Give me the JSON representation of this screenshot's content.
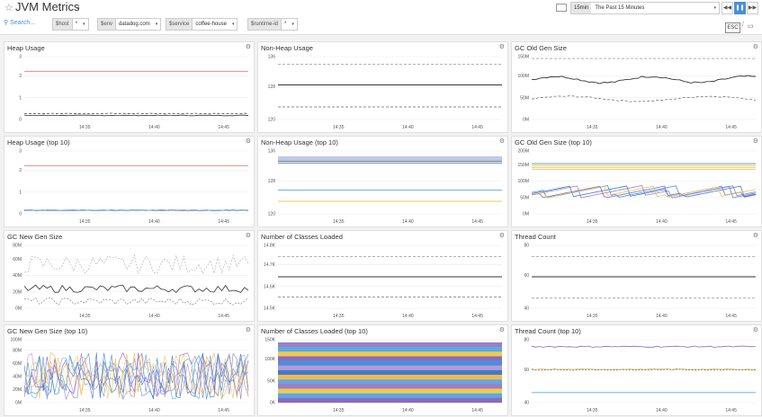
{
  "header": {
    "title": "JVM Metrics",
    "search_label": "Search...",
    "variables": [
      {
        "name": "$host",
        "value": "*"
      },
      {
        "name": "$env",
        "value": "datadog.com"
      },
      {
        "name": "$service",
        "value": "coffee-house"
      },
      {
        "name": "$runtime-id",
        "value": "*"
      }
    ],
    "time_badge": "15min",
    "time_label": "The Past 15 Minutes",
    "esc_label": "ESC",
    "separator": "/"
  },
  "colors": {
    "accent": "#4a90d9",
    "threshold": "#e07b7b"
  },
  "panels": [
    {
      "id": "heap",
      "title": "Heap Usage",
      "xticks": [
        "14:35",
        "14:40",
        "14:45"
      ],
      "yticks": [
        "3",
        "2",
        "1",
        "0"
      ]
    },
    {
      "id": "nonheap",
      "title": "Non-Heap Usage",
      "xticks": [
        "14:35",
        "14:40",
        "14:45"
      ],
      "yticks": [
        "136",
        "128",
        "120"
      ]
    },
    {
      "id": "oldgen",
      "title": "GC Old Gen Size",
      "xticks": [
        "14:35",
        "14:40",
        "14:45"
      ],
      "yticks": [
        "150M",
        "100M",
        "50M",
        "0M"
      ]
    },
    {
      "id": "heap10",
      "title": "Heap Usage (top 10)",
      "xticks": [
        "14:35",
        "14:40",
        "14:45"
      ],
      "yticks": [
        "3",
        "2",
        "1",
        "0"
      ]
    },
    {
      "id": "nonheap10",
      "title": "Non-Heap Usage (top 10)",
      "xticks": [
        "14:35",
        "14:40",
        "14:45"
      ],
      "yticks": [
        "136",
        "128",
        "120"
      ]
    },
    {
      "id": "oldgen10",
      "title": "GC Old Gen Size (top 10)",
      "xticks": [
        "14:35",
        "14:40",
        "14:45"
      ],
      "yticks": [
        "200M",
        "150M",
        "100M",
        "50M",
        "0M"
      ]
    },
    {
      "id": "newgen",
      "title": "GC New Gen Size",
      "xticks": [
        "14:35",
        "14:40",
        "14:45"
      ],
      "yticks": [
        "80M",
        "60M",
        "40M",
        "20M",
        "0M"
      ]
    },
    {
      "id": "classes",
      "title": "Number of Classes Loaded",
      "xticks": [
        "14:35",
        "14:40",
        "14:45"
      ],
      "yticks": [
        "14.8K",
        "14.7K",
        "14.6K",
        "14.5K"
      ]
    },
    {
      "id": "threads",
      "title": "Thread Count",
      "xticks": [
        "14:35",
        "14:40",
        "14:45"
      ],
      "yticks": [
        "80",
        "60",
        "40"
      ]
    },
    {
      "id": "newgen10",
      "title": "GC New Gen Size (top 10)",
      "xticks": [
        "14:35",
        "14:40",
        "14:45"
      ],
      "yticks": [
        "100M",
        "80M",
        "60M",
        "40M",
        "20M",
        "0M"
      ]
    },
    {
      "id": "classes10",
      "title": "Number of Classes Loaded (top 10)",
      "xticks": [
        "14:35",
        "14:40",
        "14:45"
      ],
      "yticks": [
        "150K",
        "100K",
        "50K",
        "0K"
      ]
    },
    {
      "id": "threads10",
      "title": "Thread Count (top 10)",
      "xticks": [
        "14:35",
        "14:40",
        "14:45"
      ],
      "yticks": [
        "80",
        "60",
        "40"
      ]
    }
  ]
}
